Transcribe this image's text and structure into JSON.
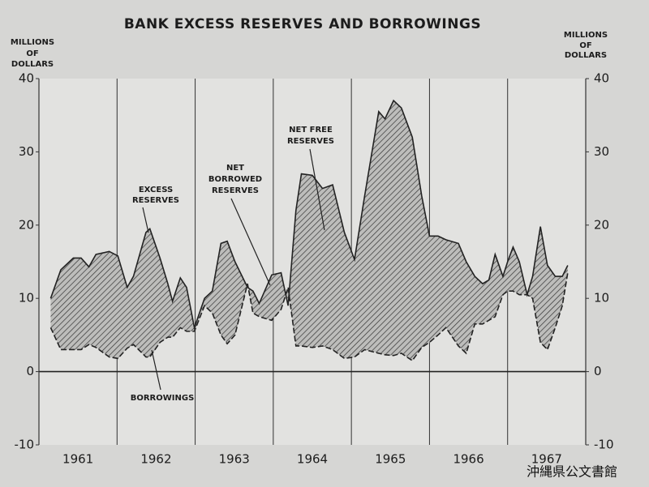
{
  "chart_data": {
    "type": "band",
    "title": "BANK EXCESS RESERVES AND BORROWINGS",
    "y_label": [
      "MILLIONS",
      "OF",
      "DOLLARS"
    ],
    "y2_label": [
      "MILLIONS",
      "OF",
      "DOLLARS"
    ],
    "categories": [
      "1961",
      "1962",
      "1963",
      "1964",
      "1965",
      "1966",
      "1967"
    ],
    "xlim": [
      1961,
      1968
    ],
    "xticks": [
      1962,
      1963,
      1964,
      1965,
      1966,
      1967
    ],
    "ylim": [
      -10,
      40
    ],
    "yticks": [
      -10,
      0,
      10,
      20,
      30,
      40
    ],
    "y2lim": [
      -10,
      40
    ],
    "y2ticks": [
      -10,
      0,
      10,
      20,
      30,
      40
    ],
    "grid": false,
    "x": [
      1961.15,
      1961.28,
      1961.44,
      1961.54,
      1961.64,
      1961.73,
      1961.9,
      1962.01,
      1962.13,
      1962.21,
      1962.37,
      1962.42,
      1962.55,
      1962.65,
      1962.71,
      1962.81,
      1962.89,
      1962.99,
      1963.12,
      1963.22,
      1963.33,
      1963.41,
      1963.51,
      1963.67,
      1963.74,
      1963.82,
      1963.98,
      1964.1,
      1964.19,
      1964.29,
      1964.36,
      1964.5,
      1964.63,
      1964.76,
      1964.91,
      1965.04,
      1965.17,
      1965.35,
      1965.43,
      1965.54,
      1965.64,
      1965.78,
      1965.9,
      1966.0,
      1966.11,
      1966.21,
      1966.37,
      1966.47,
      1966.58,
      1966.68,
      1966.76,
      1966.84,
      1966.94,
      1967.0,
      1967.07,
      1967.15,
      1967.25,
      1967.32,
      1967.42,
      1967.51,
      1967.61,
      1967.7,
      1967.77
    ],
    "series": [
      {
        "name": "EXCESS RESERVES",
        "color": "#222222",
        "values": [
          10,
          13.9,
          15.5,
          15.5,
          14.3,
          16,
          16.4,
          15.8,
          11.5,
          13,
          19,
          19.5,
          15.5,
          12,
          9.6,
          12.8,
          11.5,
          6,
          10,
          11,
          17.5,
          17.8,
          15,
          11.5,
          11,
          9.3,
          13.2,
          13.5,
          9,
          22,
          27,
          26.8,
          25,
          25.5,
          19,
          15.3,
          24,
          35.5,
          34.5,
          37,
          36,
          32,
          24,
          18.5,
          18.5,
          18,
          17.5,
          15,
          13,
          12,
          12.5,
          16,
          13,
          15,
          17,
          15,
          10.5,
          13,
          19.8,
          14.5,
          13,
          13,
          14.5
        ]
      },
      {
        "name": "BORROWINGS",
        "color": "#222222",
        "dash": true,
        "values": [
          6,
          3,
          3,
          3,
          3.7,
          3.3,
          2,
          1.8,
          3.2,
          3.7,
          2,
          2,
          4,
          4.7,
          4.7,
          6,
          5.5,
          5.5,
          9,
          8,
          5,
          3.8,
          5,
          12,
          8,
          7.5,
          7,
          8.5,
          11.5,
          3.5,
          3.5,
          3.3,
          3.5,
          3,
          1.8,
          2,
          3,
          2.5,
          2.3,
          2.2,
          2.5,
          1.5,
          3.3,
          4,
          5,
          6,
          3.5,
          2.5,
          6.5,
          6.5,
          7,
          7.5,
          10.5,
          11,
          11,
          10.5,
          10.5,
          10,
          4,
          3,
          6,
          9,
          13.5
        ]
      }
    ],
    "annotations": [
      {
        "lines": [
          "EXCESS",
          "RESERVES"
        ]
      },
      {
        "lines": [
          "NET",
          "BORROWED",
          "RESERVES"
        ]
      },
      {
        "lines": [
          "NET FREE",
          "RESERVES"
        ]
      },
      {
        "lines": [
          "BORROWINGS"
        ]
      }
    ],
    "watermark": "沖縄県公文書館"
  }
}
